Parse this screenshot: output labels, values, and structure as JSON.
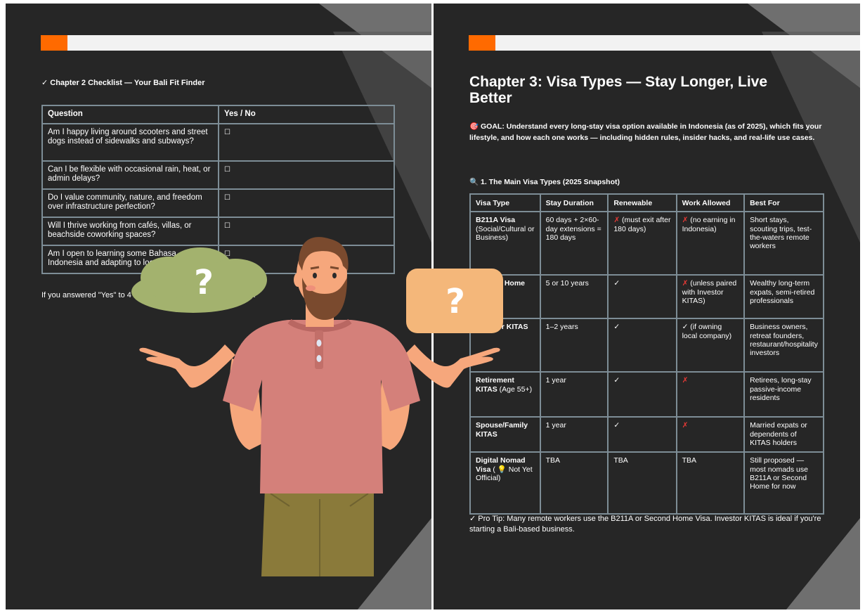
{
  "left_page": {
    "checklist_title": "✓ Chapter 2 Checklist — Your Bali Fit Finder",
    "table": {
      "headers": [
        "Question",
        "Yes / No"
      ],
      "rows": [
        {
          "question": "Am I happy living around scooters and street dogs instead of sidewalks and subways?",
          "answer": "☐"
        },
        {
          "question": "Can I be flexible with occasional rain, heat, or admin delays?",
          "answer": "☐"
        },
        {
          "question": "Do I value community, nature, and freedom over infrastructure perfection?",
          "answer": "☐"
        },
        {
          "question": "Will I thrive working from cafés, villas, or beachside coworking spaces?",
          "answer": "☐"
        },
        {
          "question": "Am I open to learning some Bahasa Indonesia and adapting to local rhythms?",
          "answer": "☐"
        }
      ]
    },
    "summary": "If you answered \"Yes\" to 4 or more, you're probably Bali-ready."
  },
  "right_page": {
    "chapter_title": "Chapter 3: Visa Types — Stay Longer, Live Better",
    "goal": "🎯 GOAL: Understand every long-stay visa option available in Indonesia (as of 2025), which fits your lifestyle, and how each one works — including hidden rules, insider hacks, and real-life use cases.",
    "section_title": "🔍 1. The Main Visa Types (2025 Snapshot)",
    "table": {
      "headers": [
        "Visa Type",
        "Stay Duration",
        "Renewable",
        "Work Allowed",
        "Best For"
      ],
      "rows": [
        {
          "name": "B211A Visa",
          "sub": "(Social/Cultural or Business)",
          "duration": "60 days + 2×60-day extensions = 180 days",
          "renewable": "(must exit after 180 days)",
          "renewable_mark": "✗",
          "work": "(no earning in Indonesia)",
          "work_mark": "✗",
          "best": "Short stays, scouting trips, test-the-waters remote workers"
        },
        {
          "name": "Second Home",
          "sub": "",
          "duration": "5 or 10 years",
          "renewable": "",
          "renewable_mark": "✓",
          "work": "(unless paired with Investor KITAS)",
          "work_mark": "✗",
          "best": "Wealthy long-term expats, semi-retired professionals"
        },
        {
          "name": "Investor KITAS",
          "sub": "",
          "duration": "1–2 years",
          "renewable": "",
          "renewable_mark": "✓",
          "work": "(if owning local company)",
          "work_mark": "✓",
          "best": "Business owners, retreat founders, restaurant/hospitality investors"
        },
        {
          "name": "Retirement KITAS",
          "sub": "(Age 55+)",
          "duration": "1 year",
          "renewable": "",
          "renewable_mark": "✓",
          "work": "",
          "work_mark": "✗",
          "best": "Retirees, long-stay passive-income residents"
        },
        {
          "name": "Spouse/Family KITAS",
          "sub": "",
          "duration": "1 year",
          "renewable": "",
          "renewable_mark": "✓",
          "work": "",
          "work_mark": "✗",
          "best": "Married expats or dependents of KITAS holders"
        },
        {
          "name": "Digital Nomad Visa",
          "sub": "( 💡 Not Yet Official)",
          "duration": "TBA",
          "renewable": "TBA",
          "renewable_mark": "",
          "work": "TBA",
          "work_mark": "",
          "best": "Still proposed — most nomads use B211A or Second Home for now"
        }
      ]
    },
    "pro_tip": "✓ Pro Tip: Many remote workers use the B211A or Second Home Visa. Investor KITAS is ideal if you're starting a Bali-based business."
  },
  "overlay": {
    "bubble_left_symbol": "?",
    "bubble_right_symbol": "?",
    "colors": {
      "bubble_left": "#a3b26e",
      "bubble_right": "#f4b77a",
      "shirt": "#d4807a",
      "skin": "#f6a77c",
      "pants": "#8a7a3a",
      "hair": "#7a4a2e"
    }
  }
}
